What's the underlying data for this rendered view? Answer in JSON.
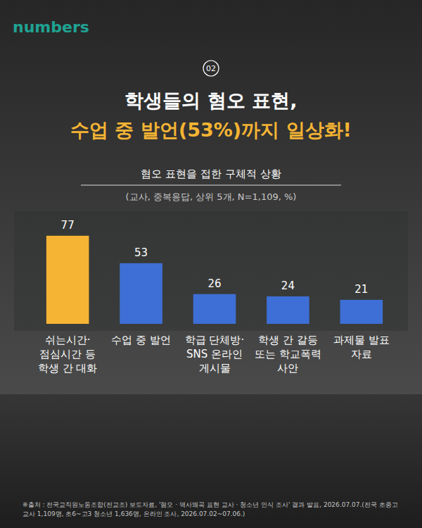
{
  "brand": "numbers",
  "badge": "02",
  "chart_data": {
    "type": "bar",
    "title": [
      "학생들의 혐오 표현,",
      "수업 중 발언(53%)까지 일상화!"
    ],
    "subtitle": "혐오 표현을 접한 구체적 상황",
    "note": "(교사, 중복응답, 상위 5개, N=1,109, %)",
    "categories": [
      "쉬는시간·점심시간 등 학생 간 대화",
      "수업 중 발언",
      "학급 단체방·SNS 온라인 게시물",
      "학생 간 갈등 또는 학교폭력 사안",
      "과제물 발표 자료"
    ],
    "values": [
      77,
      53,
      26,
      24,
      21
    ],
    "colors": [
      "#f5b433",
      "#3e6fd6",
      "#3e6fd6",
      "#3e6fd6",
      "#3e6fd6"
    ],
    "ylim": [
      0,
      80
    ],
    "data_labels": true,
    "tick_labels": "x",
    "source": "※출처 : 전국교직원노동조합(전교조) 보도자료, '혐오 · 역사왜곡 표현 교사 · 청소년 인식 조사' 결과 발표, 2026.07.07.(전국 초중고 교사 1,109명, 초6~고3 청소년 1,636명, 온라인 조사, 2026.07.02~07.06.)"
  }
}
